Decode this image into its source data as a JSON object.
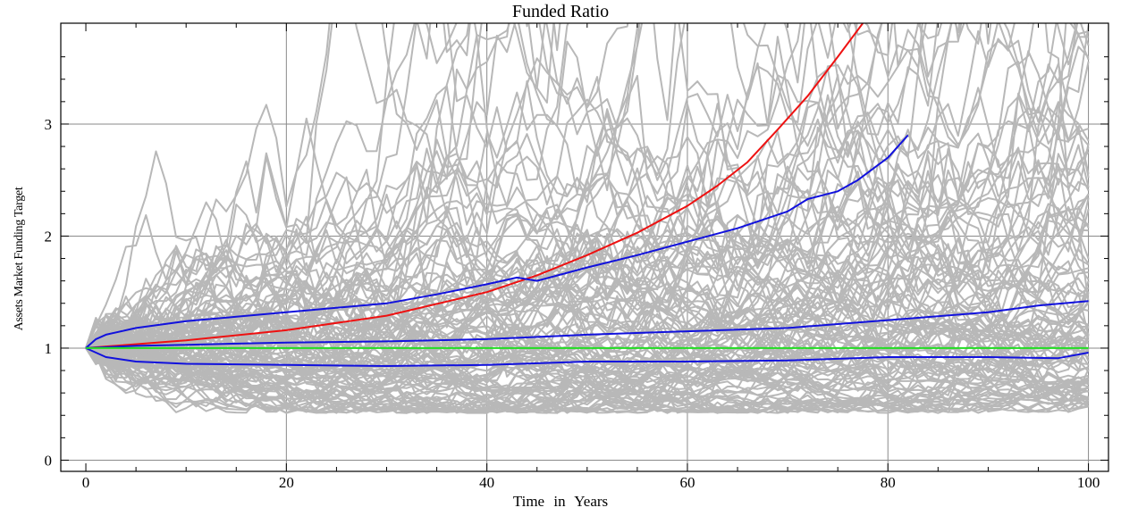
{
  "chart_data": {
    "type": "line",
    "title": "Funded Ratio",
    "xlabel": "Time  in  Years",
    "ylabel": "Assets Market Funding Target",
    "xlim": [
      -2.5,
      102
    ],
    "ylim": [
      -0.1,
      3.9
    ],
    "x_ticks": [
      0,
      20,
      40,
      60,
      80,
      100
    ],
    "y_ticks": [
      0,
      1,
      2,
      3
    ],
    "grid": true,
    "colors": {
      "simulated_paths": "#b8b8b8",
      "expected": "#ee1111",
      "percentiles": "#1111dd",
      "target": "#22dd22",
      "grid": "#8a8a8a"
    },
    "simulated_paths_count": 120,
    "series": [
      {
        "style": "expected",
        "x": [
          0,
          10,
          20,
          30,
          40,
          45,
          50,
          55,
          60,
          63,
          66,
          69,
          72,
          75,
          77.5
        ],
        "y": [
          1.0,
          1.07,
          1.16,
          1.29,
          1.5,
          1.65,
          1.83,
          2.03,
          2.27,
          2.45,
          2.66,
          2.95,
          3.25,
          3.6,
          3.9
        ]
      },
      {
        "style": "percentile",
        "x": [
          0,
          1,
          2,
          5,
          10,
          15,
          20,
          25,
          30,
          35,
          40,
          43,
          45,
          50,
          55,
          60,
          65,
          70,
          72,
          75,
          77,
          80,
          82
        ],
        "y": [
          1.0,
          1.08,
          1.12,
          1.18,
          1.24,
          1.28,
          1.32,
          1.36,
          1.4,
          1.48,
          1.57,
          1.63,
          1.6,
          1.72,
          1.83,
          1.95,
          2.07,
          2.22,
          2.33,
          2.4,
          2.5,
          2.7,
          2.9
        ]
      },
      {
        "style": "percentile",
        "x": [
          0,
          5,
          10,
          20,
          30,
          40,
          50,
          60,
          70,
          80,
          90,
          95,
          100
        ],
        "y": [
          1.0,
          1.02,
          1.03,
          1.05,
          1.06,
          1.08,
          1.12,
          1.15,
          1.18,
          1.25,
          1.32,
          1.38,
          1.42
        ]
      },
      {
        "style": "percentile",
        "x": [
          0,
          2,
          5,
          10,
          20,
          30,
          40,
          50,
          60,
          70,
          80,
          90,
          97,
          100
        ],
        "y": [
          1.0,
          0.92,
          0.88,
          0.86,
          0.85,
          0.84,
          0.85,
          0.88,
          0.88,
          0.89,
          0.92,
          0.92,
          0.91,
          0.96
        ]
      },
      {
        "style": "target",
        "x": [
          0,
          100
        ],
        "y": [
          1.0,
          1.0
        ]
      }
    ]
  }
}
